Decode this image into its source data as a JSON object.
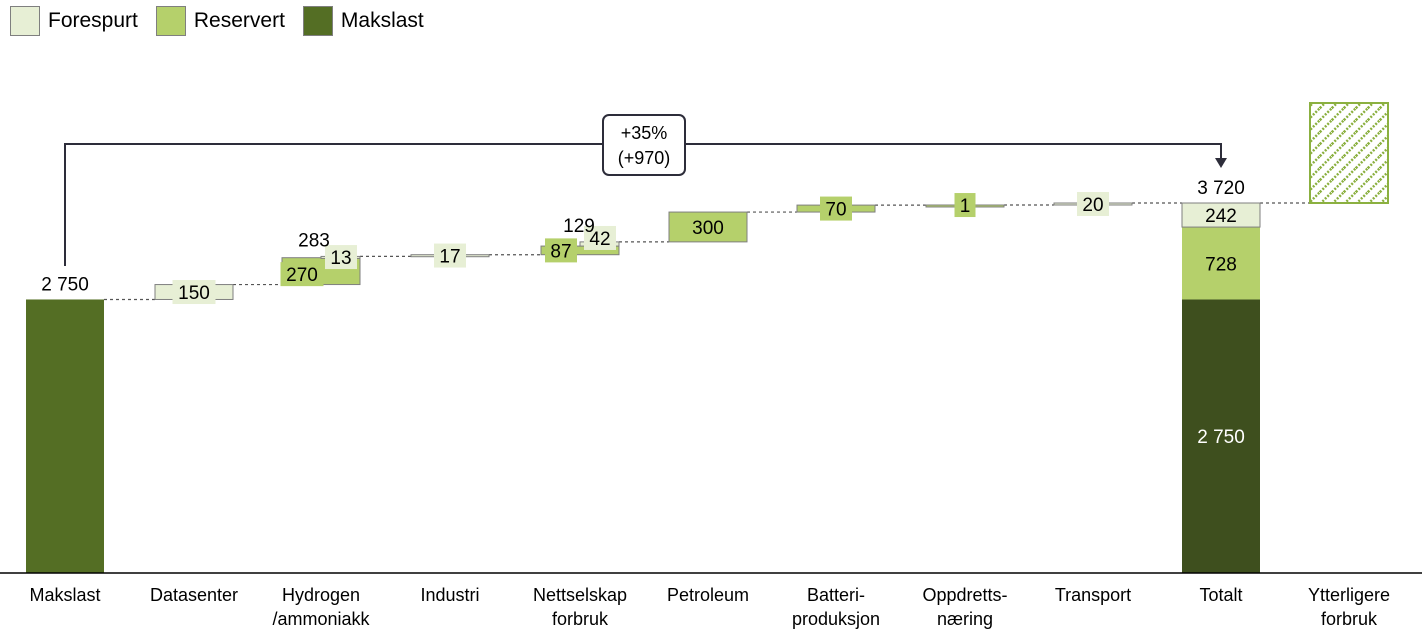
{
  "legend": {
    "items": [
      {
        "label": "Forespurt",
        "color": "#e7efd5"
      },
      {
        "label": "Reservert",
        "color": "#b5d06b"
      },
      {
        "label": "Makslast",
        "color": "#546e24"
      }
    ]
  },
  "colors": {
    "forespurt": "#e7efd5",
    "reservert": "#b5d06b",
    "makslast": "#546e24",
    "makslast_total": "#3e4f1e",
    "hatch": "#8bb040",
    "axis": "#000000",
    "border": "#7f7f7f"
  },
  "bracket": {
    "line1": "+35%",
    "line2": "(+970)"
  },
  "chart_data": {
    "type": "bar",
    "subtype": "waterfall",
    "ylim": [
      0,
      4500
    ],
    "categories": [
      {
        "label": "Makslast",
        "lines": [
          "Makslast"
        ]
      },
      {
        "label": "Datasenter",
        "lines": [
          "Datasenter"
        ]
      },
      {
        "label": "Hydrogen /ammoniakk",
        "lines": [
          "Hydrogen",
          "/ammoniakk"
        ]
      },
      {
        "label": "Industri",
        "lines": [
          "Industri"
        ]
      },
      {
        "label": "Nettselskap forbruk",
        "lines": [
          "Nettselskap",
          "forbruk"
        ]
      },
      {
        "label": "Petroleum",
        "lines": [
          "Petroleum"
        ]
      },
      {
        "label": "Batteri-produksjon",
        "lines": [
          "Batteri-",
          "produksjon"
        ]
      },
      {
        "label": "Oppdretts-næring",
        "lines": [
          "Oppdretts-",
          "næring"
        ]
      },
      {
        "label": "Transport",
        "lines": [
          "Transport"
        ]
      },
      {
        "label": "Totalt",
        "lines": [
          "Totalt"
        ]
      },
      {
        "label": "Ytterligere forbruk",
        "lines": [
          "Ytterligere",
          "forbruk"
        ]
      }
    ],
    "series": [
      {
        "name": "Makslast",
        "values": [
          2750,
          0,
          0,
          0,
          0,
          0,
          0,
          0,
          0,
          2750,
          null
        ]
      },
      {
        "name": "Reservert",
        "values": [
          0,
          0,
          270,
          0,
          87,
          300,
          70,
          1,
          0,
          728,
          null
        ]
      },
      {
        "name": "Forespurt",
        "values": [
          0,
          150,
          13,
          17,
          42,
          0,
          0,
          0,
          20,
          242,
          null
        ]
      }
    ],
    "value_labels": {
      "start": "2 750",
      "Datasenter": [
        "150"
      ],
      "Hydrogen": [
        "270",
        "13"
      ],
      "Hydrogen_total": "283",
      "Industri": [
        "17"
      ],
      "Nettselskap": [
        "87",
        "42"
      ],
      "Nettselskap_total": "129",
      "Petroleum": [
        "300"
      ],
      "Batteri": [
        "70"
      ],
      "Oppdrett": [
        "1"
      ],
      "Transport": [
        "20"
      ],
      "total_top": "3 720",
      "total_segments": [
        "2 750",
        "728",
        "242"
      ]
    },
    "total": 3720,
    "increase_pct": "+35%",
    "increase_abs": "+970",
    "extra_category_hatched": true,
    "legend_position": "top-left",
    "grid": false
  }
}
